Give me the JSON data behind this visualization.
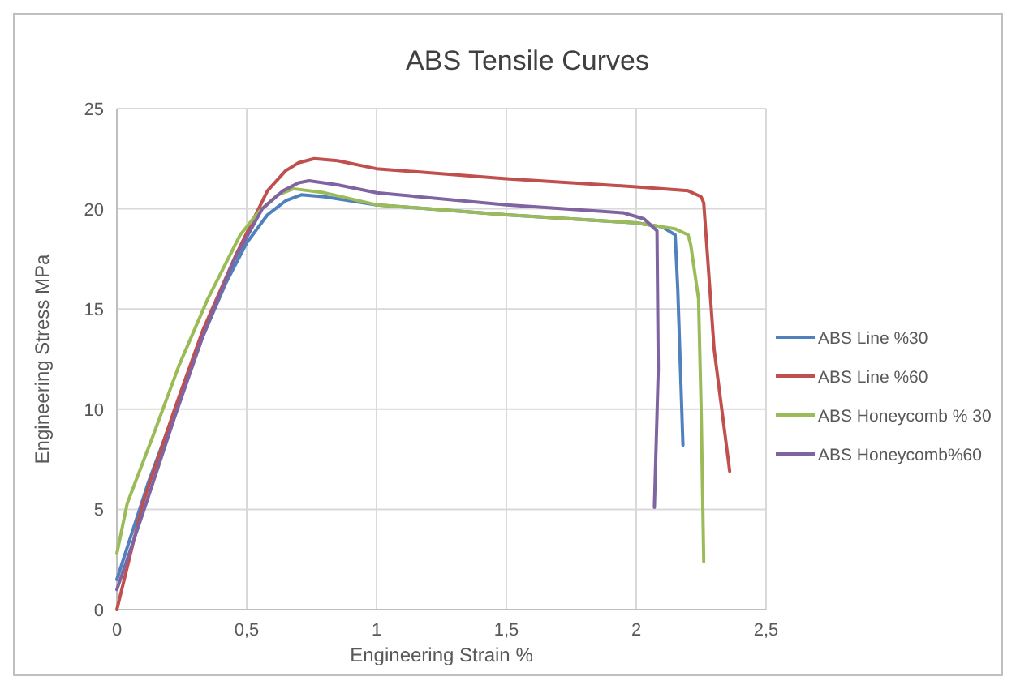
{
  "chart_data": {
    "type": "line",
    "title": "ABS Tensile Curves",
    "xlabel": "Engineering Strain %",
    "ylabel": "Engineering Stress MPa",
    "xlim": [
      0,
      2.5
    ],
    "ylim": [
      0,
      25
    ],
    "xticks": [
      0,
      {
        "value": 0.5,
        "label": "0,5"
      },
      1,
      {
        "value": 1.5,
        "label": "1,5"
      },
      2,
      {
        "value": 2.5,
        "label": "2,5"
      }
    ],
    "yticks": [
      0,
      5,
      10,
      15,
      20,
      25
    ],
    "grid": true,
    "legend": "right",
    "marker": "none",
    "line_style": "solid",
    "series": [
      {
        "name": "ABS Line %30",
        "color": "#4f81bd",
        "x": [
          0,
          0.05,
          0.12,
          0.22,
          0.33,
          0.42,
          0.5,
          0.58,
          0.65,
          0.71,
          0.8,
          1,
          1.5,
          2,
          2.1,
          2.15,
          2.16,
          2.18
        ],
        "values": [
          1.5,
          3.5,
          6.3,
          9.8,
          13.6,
          16.3,
          18.3,
          19.7,
          20.4,
          20.7,
          20.6,
          20.2,
          19.7,
          19.3,
          19.1,
          18.7,
          16,
          8.2
        ]
      },
      {
        "name": "ABS Line %60",
        "color": "#c0504d",
        "x": [
          0,
          0.1,
          0.225,
          0.33,
          0.455,
          0.58,
          0.65,
          0.7,
          0.76,
          0.85,
          1,
          1.5,
          2,
          2.2,
          2.25,
          2.26,
          2.3,
          2.36
        ],
        "values": [
          0,
          5.3,
          10.1,
          13.9,
          17.6,
          20.9,
          21.9,
          22.3,
          22.5,
          22.4,
          22,
          21.5,
          21.1,
          20.9,
          20.6,
          20.3,
          13,
          6.9
        ]
      },
      {
        "name": "ABS Honeycomb % 30",
        "color": "#9bbb59",
        "x": [
          0,
          0.04,
          0.14,
          0.24,
          0.35,
          0.475,
          0.55,
          0.62,
          0.68,
          0.8,
          1,
          1.5,
          2,
          2.15,
          2.2,
          2.21,
          2.24,
          2.25,
          2.26
        ],
        "values": [
          2.8,
          5.3,
          8.7,
          12.2,
          15.5,
          18.7,
          19.9,
          20.7,
          21,
          20.8,
          20.2,
          19.7,
          19.3,
          19,
          18.7,
          18.2,
          15.5,
          10,
          2.4
        ]
      },
      {
        "name": "ABS Honeycomb%60",
        "color": "#8064a2",
        "x": [
          0,
          0.1,
          0.22,
          0.33,
          0.45,
          0.56,
          0.64,
          0.7,
          0.74,
          0.85,
          1,
          1.5,
          1.95,
          2.03,
          2.08,
          2.085,
          2.07
        ],
        "values": [
          1,
          4.8,
          9.5,
          13.6,
          17.4,
          20,
          20.9,
          21.3,
          21.4,
          21.2,
          20.8,
          20.2,
          19.8,
          19.5,
          18.9,
          12,
          5.1
        ]
      }
    ]
  }
}
